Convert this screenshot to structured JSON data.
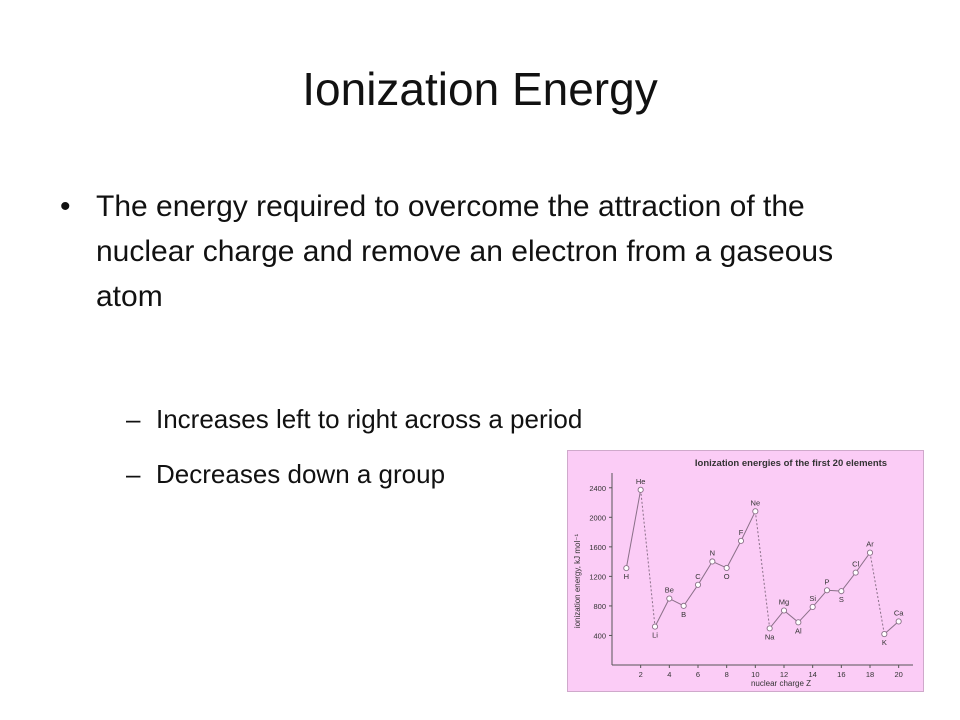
{
  "slide": {
    "title": "Ionization Energy",
    "bullet": "The energy required to overcome the attraction of the nuclear charge and remove an electron from a gaseous atom",
    "sub_bullets": [
      "Increases left to right across a period",
      "Decreases down a group"
    ]
  },
  "chart_data": {
    "type": "line",
    "title": "Ionization energies of the first 20 elements",
    "xlabel": "nuclear charge Z",
    "ylabel": "ionization energy, kJ mol⁻¹",
    "xlim": [
      0,
      21
    ],
    "ylim": [
      0,
      2600
    ],
    "xticks": [
      2,
      4,
      6,
      8,
      10,
      12,
      14,
      16,
      18,
      20
    ],
    "yticks": [
      400,
      800,
      1200,
      1600,
      2000,
      2400
    ],
    "points": [
      {
        "z": 1,
        "el": "H",
        "ie": 1312
      },
      {
        "z": 2,
        "el": "He",
        "ie": 2372
      },
      {
        "z": 3,
        "el": "Li",
        "ie": 520
      },
      {
        "z": 4,
        "el": "Be",
        "ie": 900
      },
      {
        "z": 5,
        "el": "B",
        "ie": 801
      },
      {
        "z": 6,
        "el": "C",
        "ie": 1086
      },
      {
        "z": 7,
        "el": "N",
        "ie": 1402
      },
      {
        "z": 8,
        "el": "O",
        "ie": 1314
      },
      {
        "z": 9,
        "el": "F",
        "ie": 1681
      },
      {
        "z": 10,
        "el": "Ne",
        "ie": 2081
      },
      {
        "z": 11,
        "el": "Na",
        "ie": 496
      },
      {
        "z": 12,
        "el": "Mg",
        "ie": 738
      },
      {
        "z": 13,
        "el": "Al",
        "ie": 578
      },
      {
        "z": 14,
        "el": "Si",
        "ie": 786
      },
      {
        "z": 15,
        "el": "P",
        "ie": 1012
      },
      {
        "z": 16,
        "el": "S",
        "ie": 1000
      },
      {
        "z": 17,
        "el": "Cl",
        "ie": 1251
      },
      {
        "z": 18,
        "el": "Ar",
        "ie": 1521
      },
      {
        "z": 19,
        "el": "K",
        "ie": 419
      },
      {
        "z": 20,
        "el": "Ca",
        "ie": 590
      }
    ],
    "dashed_segments": [
      [
        2,
        3
      ],
      [
        10,
        11
      ],
      [
        18,
        19
      ]
    ],
    "grid": false,
    "colors": {
      "background": "#fbccf6",
      "line": "#8a7088",
      "marker_fill": "#ffffff",
      "text": "#333333"
    }
  }
}
